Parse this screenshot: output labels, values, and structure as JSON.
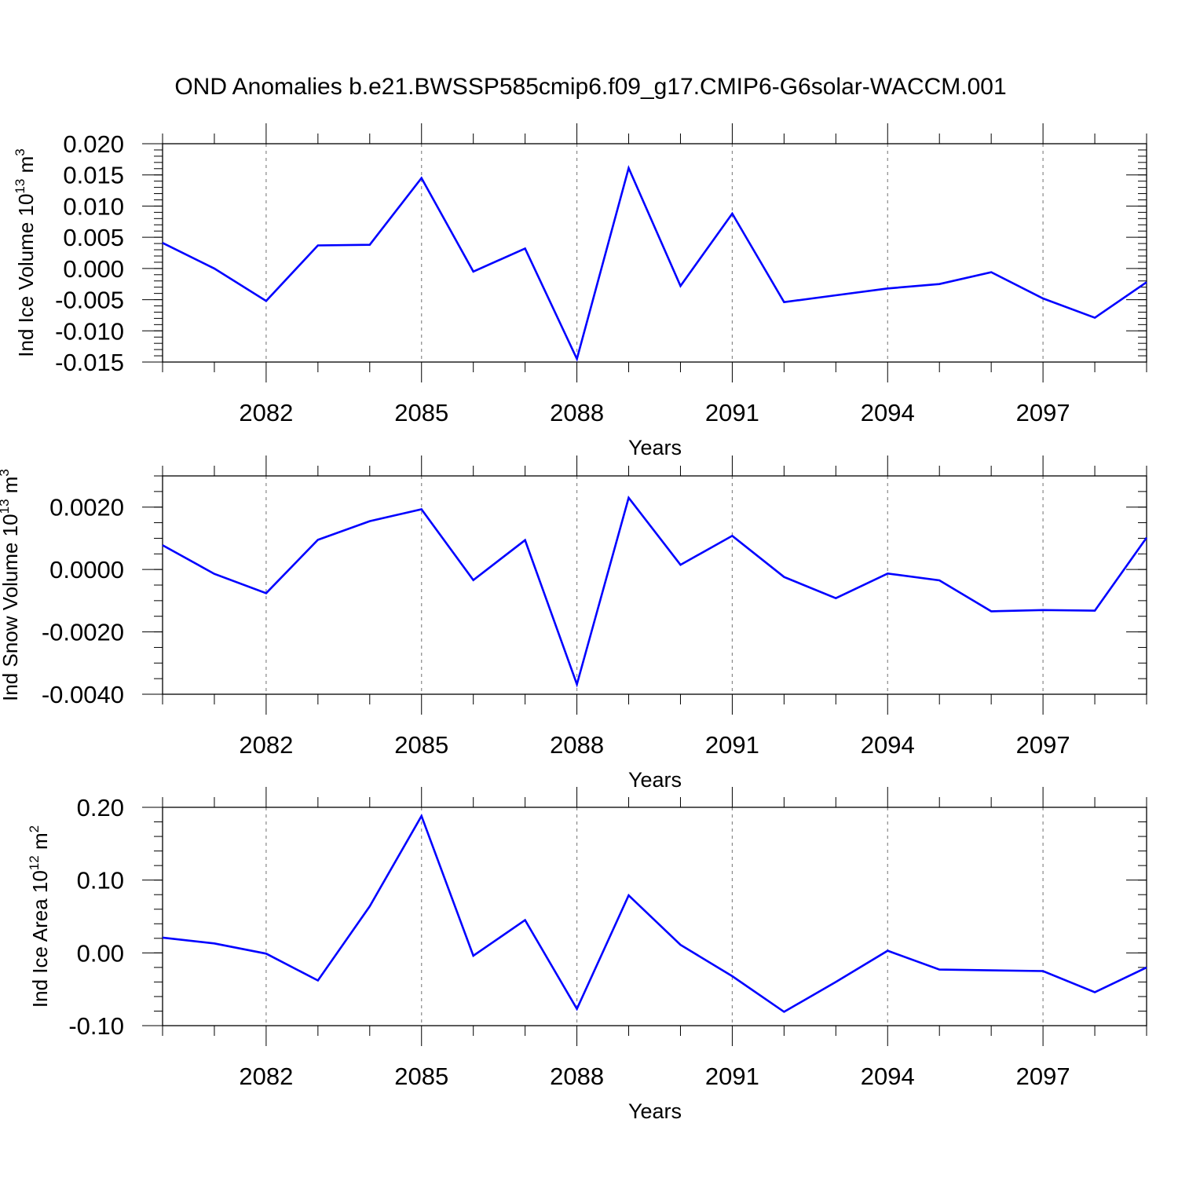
{
  "title": "OND Anomalies b.e21.BWSSP585cmip6.f09_g17.CMIP6-G6solar-WACCM.001",
  "line_color": "#0000ff",
  "chart_data": [
    {
      "type": "line",
      "ylabel": "Ind Ice Volume 10",
      "ylabel_exp": "13",
      "ylabel_unit": " m",
      "ylabel_unit_exp": "3",
      "xlabel": "Years",
      "x": [
        2080,
        2081,
        2082,
        2083,
        2084,
        2085,
        2086,
        2087,
        2088,
        2089,
        2090,
        2091,
        2092,
        2093,
        2094,
        2095,
        2096,
        2097,
        2098,
        2099
      ],
      "values": [
        0.0041,
        0.0,
        -0.0052,
        0.0037,
        0.0038,
        0.0145,
        -0.0005,
        0.0032,
        -0.0145,
        0.0161,
        -0.0028,
        0.0088,
        -0.0054,
        -0.0043,
        -0.0032,
        -0.0025,
        -0.0006,
        -0.0048,
        -0.0079,
        -0.0022
      ],
      "xlim": [
        2080,
        2099
      ],
      "ylim": [
        -0.015,
        0.02
      ],
      "xticks": [
        "2082",
        "2085",
        "2088",
        "2091",
        "2094",
        "2097"
      ],
      "yticks": [
        "0.020",
        "0.015",
        "0.010",
        "0.005",
        "0.000",
        "-0.005",
        "-0.010",
        "-0.015"
      ],
      "grid": "vertical dashed at labeled years"
    },
    {
      "type": "line",
      "ylabel": "Ind Snow Volume 10",
      "ylabel_exp": "13",
      "ylabel_unit": " m",
      "ylabel_unit_exp": "3",
      "xlabel": "Years",
      "x": [
        2080,
        2081,
        2082,
        2083,
        2084,
        2085,
        2086,
        2087,
        2088,
        2089,
        2090,
        2091,
        2092,
        2093,
        2094,
        2095,
        2096,
        2097,
        2098,
        2099
      ],
      "values": [
        0.00078,
        -0.00014,
        -0.00076,
        0.00095,
        0.00155,
        0.00193,
        -0.00034,
        0.00094,
        -0.00368,
        0.0023,
        0.00015,
        0.00108,
        -0.00024,
        -0.00092,
        -0.00013,
        -0.00035,
        -0.00134,
        -0.0013,
        -0.00132,
        0.00102
      ],
      "xlim": [
        2080,
        2099
      ],
      "ylim": [
        -0.004,
        0.003
      ],
      "xticks": [
        "2082",
        "2085",
        "2088",
        "2091",
        "2094",
        "2097"
      ],
      "yticks": [
        "0.0020",
        "0.0000",
        "-0.0020",
        "-0.0040"
      ],
      "grid": "vertical dashed at labeled years"
    },
    {
      "type": "line",
      "ylabel": "Ind Ice Area 10",
      "ylabel_exp": "12",
      "ylabel_unit": " m",
      "ylabel_unit_exp": "2",
      "xlabel": "Years",
      "x": [
        2080,
        2081,
        2082,
        2083,
        2084,
        2085,
        2086,
        2087,
        2088,
        2089,
        2090,
        2091,
        2092,
        2093,
        2094,
        2095,
        2096,
        2097,
        2098,
        2099
      ],
      "values": [
        0.021,
        0.013,
        -0.001,
        -0.038,
        0.064,
        0.188,
        -0.004,
        0.045,
        -0.077,
        0.079,
        0.011,
        -0.032,
        -0.081,
        -0.04,
        0.003,
        -0.023,
        -0.024,
        -0.025,
        -0.054,
        -0.02
      ],
      "xlim": [
        2080,
        2099
      ],
      "ylim": [
        -0.1,
        0.2
      ],
      "xticks": [
        "2082",
        "2085",
        "2088",
        "2091",
        "2094",
        "2097"
      ],
      "yticks": [
        "0.20",
        "0.10",
        "0.00",
        "-0.10"
      ],
      "grid": "vertical dashed at labeled years"
    }
  ]
}
